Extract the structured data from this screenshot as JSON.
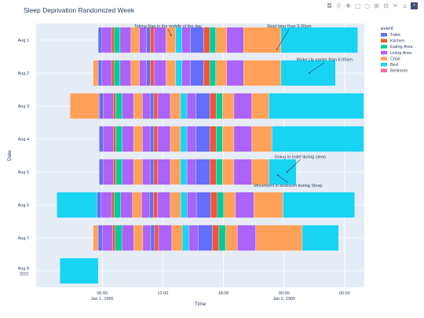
{
  "chart_data": {
    "type": "timeline",
    "title": "Sleep Deprivation Randomized Week",
    "xlabel": "Time",
    "ylabel": "Date",
    "x_tick_labels": [
      {
        "value": 6,
        "line1": "06:00",
        "line2": "Jan 1, 1900"
      },
      {
        "value": 12,
        "line1": "12:00",
        "line2": ""
      },
      {
        "value": 18,
        "line1": "18:00",
        "line2": ""
      },
      {
        "value": 24,
        "line1": "00:00",
        "line2": "Jan 2, 1900"
      },
      {
        "value": 30,
        "line1": "06:00",
        "line2": ""
      }
    ],
    "xlim": [
      0,
      31.5
    ],
    "categories": [
      "Aug 1",
      "Aug 2",
      "Aug 3",
      "Aug 4",
      "Aug 5",
      "Aug 6",
      "Aug 7",
      "Aug 8 2021"
    ],
    "category_display": [
      [
        "Aug 1"
      ],
      [
        "Aug 2"
      ],
      [
        "Aug 3"
      ],
      [
        "Aug 4"
      ],
      [
        "Aug 5"
      ],
      [
        "Aug 6"
      ],
      [
        "Aug 7"
      ],
      [
        "Aug 8",
        "2021"
      ]
    ],
    "legend": {
      "title": "event",
      "placement": "right",
      "entries": [
        {
          "name": "Toilet",
          "color": "#636efa"
        },
        {
          "name": "Kitchen",
          "color": "#ef553b"
        },
        {
          "name": "Eating Area",
          "color": "#00cc96"
        },
        {
          "name": "Living Area",
          "color": "#ab63fa"
        },
        {
          "name": "Chair",
          "color": "#ffa15a"
        },
        {
          "name": "Bed",
          "color": "#19d3f3"
        },
        {
          "name": "Bedroom",
          "color": "#ff6692"
        }
      ]
    },
    "grid": true,
    "segment_pattern": [
      [
        "Toilet",
        0.3
      ],
      [
        "Living Area",
        0.8
      ],
      [
        "Kitchen",
        0.2
      ],
      [
        "Eating Area",
        0.5
      ],
      [
        "Living Area",
        0.9
      ],
      [
        "Chair",
        0.7
      ],
      [
        "Living Area",
        0.6
      ],
      [
        "Toilet",
        0.3
      ],
      [
        "Kitchen",
        0.3
      ],
      [
        "Living Area",
        1.0
      ],
      [
        "Chair",
        0.8
      ],
      [
        "Bed",
        0.5
      ],
      [
        "Living Area",
        0.7
      ],
      [
        "Toilet",
        1.1
      ],
      [
        "Kitchen",
        0.5
      ],
      [
        "Eating Area",
        0.5
      ],
      [
        "Chair",
        0.9
      ],
      [
        "Living Area",
        1.4
      ]
    ],
    "rows": [
      {
        "date": "Aug 1",
        "pre": null,
        "pattern_start": 5.6,
        "tail": [
          [
            "Chair",
            20.0,
            23.7
          ],
          [
            "Bed",
            23.7,
            31.3
          ]
        ]
      },
      {
        "date": "Aug 2",
        "pre": [
          "Chair",
          5.1,
          5.6
        ],
        "pattern_start": 5.6,
        "tail": [
          [
            "Chair",
            20.0,
            23.7
          ],
          [
            "Bed",
            23.7,
            29.1
          ]
        ]
      },
      {
        "date": "Aug 3",
        "pre": [
          "Chair",
          2.8,
          5.7
        ],
        "pattern_start": 5.7,
        "tail": [
          [
            "Chair",
            20.8,
            22.5
          ],
          [
            "Bed",
            22.5,
            31.9
          ]
        ]
      },
      {
        "date": "Aug 4",
        "pre": null,
        "pattern_start": 5.7,
        "tail": [
          [
            "Chair",
            20.8,
            22.8
          ],
          [
            "Bed",
            22.8,
            31.9
          ]
        ]
      },
      {
        "date": "Aug 5",
        "pre": null,
        "pattern_start": 5.7,
        "tail": [
          [
            "Chair",
            20.8,
            22.5
          ],
          [
            "Bed",
            22.5,
            25.2
          ]
        ]
      },
      {
        "date": "Aug 6",
        "pre": [
          "Bed",
          1.5,
          5.5
        ],
        "pattern_start": 5.5,
        "tail": [
          [
            "Chair",
            21.0,
            23.9
          ],
          [
            "Bed",
            23.9,
            31.0
          ]
        ]
      },
      {
        "date": "Aug 7",
        "pre": [
          "Chair",
          5.1,
          5.6
        ],
        "pattern_start": 5.6,
        "tail": [
          [
            "Chair",
            21.2,
            25.8
          ],
          [
            "Bed",
            25.8,
            29.4
          ]
        ]
      },
      {
        "date": "Aug 8 2021",
        "pre": null,
        "pattern_start": null,
        "tail": [
          [
            "Bed",
            1.8,
            5.6
          ]
        ]
      }
    ],
    "annotations": [
      {
        "text": "Taking Nap in the middle of the day",
        "row": "Aug 1",
        "x": 12.8,
        "y_offset": -0.15,
        "tx": 12.5,
        "ty_offset": -0.38
      },
      {
        "text": "Slept later than 9.00pm",
        "row": "Aug 1",
        "x": 23.3,
        "y_offset": 0.28,
        "tx": 24.5,
        "ty_offset": -0.38
      },
      {
        "text": "Woke Up earlier than 6.00am",
        "row": "Aug 2",
        "x": 26.5,
        "y_offset": 0.0,
        "tx": 28.0,
        "ty_offset": -0.37
      },
      {
        "text": "Going to toilet during sleep",
        "row": "Aug 5",
        "x": 24.3,
        "y_offset": 0.0,
        "tx": 25.6,
        "ty_offset": -0.42
      },
      {
        "text": "Movement in bedroom during Sleep",
        "row": "Aug 5",
        "x": 23.4,
        "y_offset": 0.1,
        "tx": 24.4,
        "ty_offset": 0.45
      }
    ]
  }
}
